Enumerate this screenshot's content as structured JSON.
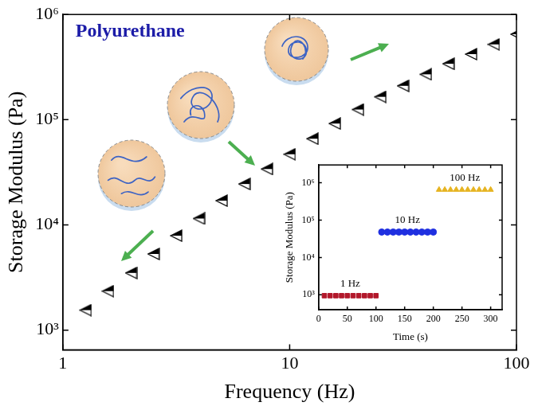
{
  "chart_data": [
    {
      "type": "scatter",
      "annotation": "Polyurethane",
      "x_label": "Frequency (Hz)",
      "y_label": "Storage Modulus (Pa)",
      "log": true,
      "grid": false,
      "color": "#000000",
      "marker": "triangle-left-half",
      "x": [
        1.26,
        1.58,
        2,
        2.51,
        3.16,
        3.98,
        5.01,
        6.31,
        7.94,
        10,
        12.6,
        15.8,
        20,
        25.1,
        31.6,
        39.8,
        50.1,
        63.1,
        79.4,
        100
      ],
      "values": [
        1550,
        2350,
        3500,
        5300,
        7900,
        11500,
        17000,
        24500,
        34000,
        47000,
        66000,
        92000,
        125000,
        165000,
        210000,
        270000,
        340000,
        420000,
        520000,
        650000
      ],
      "xlim": [
        1,
        100
      ],
      "xticks": [
        1,
        10,
        100
      ],
      "ylim": [
        650,
        1000000
      ],
      "yticks": [
        {
          "value": 1000,
          "label": "10³"
        },
        {
          "value": 10000,
          "label": "10⁴"
        },
        {
          "value": 100000,
          "label": "10⁵"
        },
        {
          "value": 1000000,
          "label": "10⁶"
        }
      ]
    },
    {
      "type": "scatter",
      "x_label": "Time (s)",
      "y_label": "Storage Modulus (Pa)",
      "log": "y",
      "grid": false,
      "xlim": [
        0,
        320
      ],
      "xticks": [
        0,
        50,
        100,
        150,
        200,
        250,
        300
      ],
      "ylim": [
        400,
        3000000
      ],
      "yticks": [
        {
          "value": 1000,
          "label": "10³"
        },
        {
          "value": 10000,
          "label": "10⁴"
        },
        {
          "value": 100000,
          "label": "10⁵"
        },
        {
          "value": 1000000,
          "label": "10⁶"
        }
      ],
      "series": [
        {
          "name": "1 Hz",
          "color": "#b2182b",
          "marker": "square",
          "x": [
            10,
            20,
            30,
            40,
            50,
            60,
            70,
            80,
            90,
            100
          ],
          "values": [
            950,
            950,
            950,
            950,
            950,
            950,
            950,
            950,
            950,
            950
          ]
        },
        {
          "name": "10 Hz",
          "color": "#1f2fe0",
          "marker": "circle",
          "x": [
            110,
            120,
            130,
            140,
            150,
            160,
            170,
            180,
            190,
            200
          ],
          "values": [
            48000,
            48000,
            48000,
            48000,
            48000,
            48000,
            48000,
            48000,
            48000,
            48000
          ]
        },
        {
          "name": "100 Hz",
          "color": "#e6b422",
          "marker": "triangle",
          "x": [
            210,
            220,
            230,
            240,
            250,
            260,
            270,
            280,
            290,
            300
          ],
          "values": [
            650000,
            650000,
            650000,
            650000,
            650000,
            650000,
            650000,
            650000,
            650000,
            650000
          ]
        }
      ]
    }
  ]
}
